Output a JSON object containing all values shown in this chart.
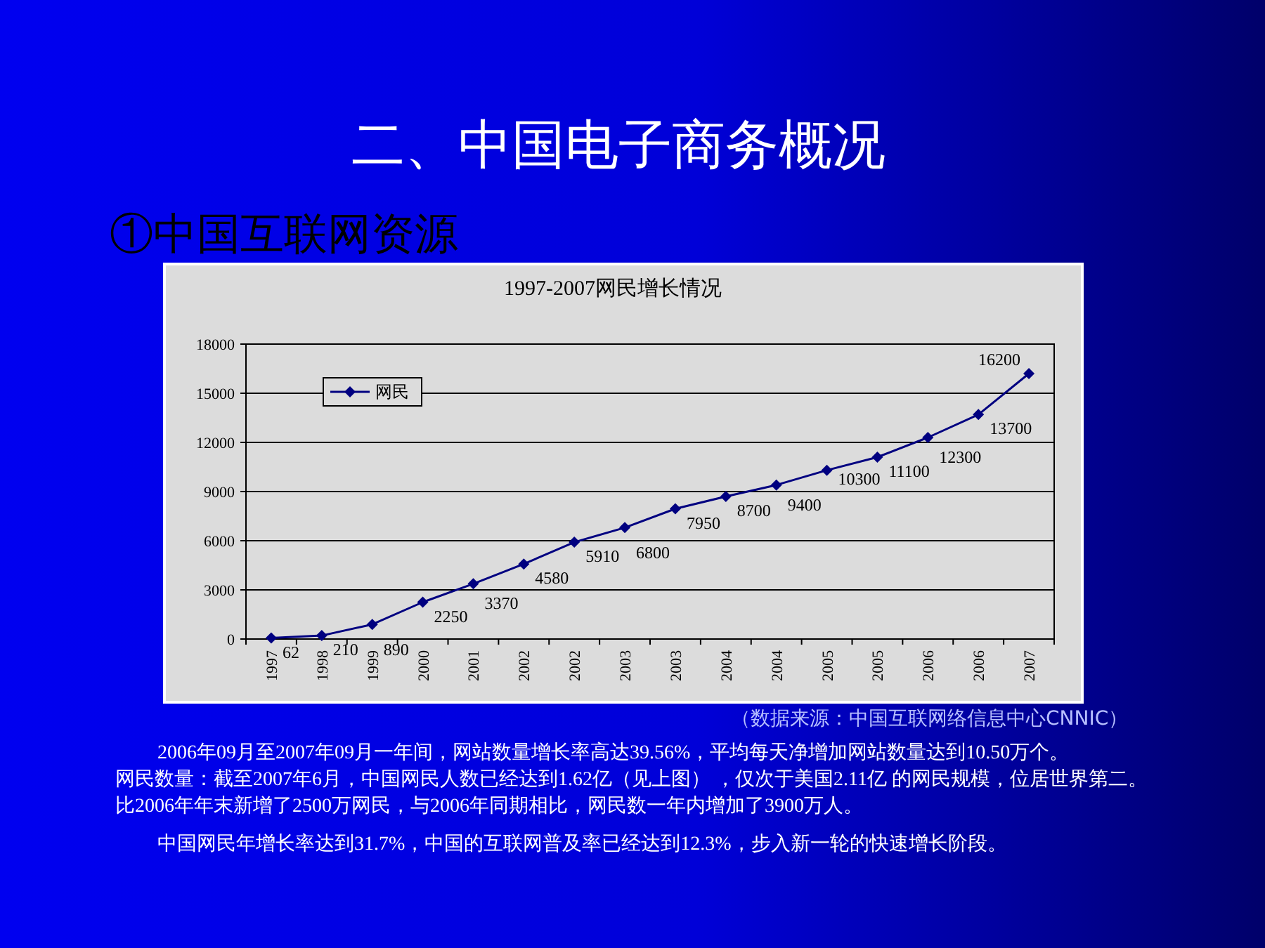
{
  "chart_data": {
    "type": "line",
    "title": "1997-2007网民增长情况",
    "categories": [
      "1997",
      "1998",
      "1999",
      "2000",
      "2001",
      "2002",
      "2002",
      "2003",
      "2003",
      "2004",
      "2004",
      "2005",
      "2005",
      "2006",
      "2006",
      "2007"
    ],
    "series": [
      {
        "name": "网民",
        "color": "#000080",
        "values": [
          62,
          210,
          890,
          2250,
          3370,
          4580,
          5910,
          6800,
          7950,
          8700,
          9400,
          10300,
          11100,
          12300,
          13700,
          16200
        ]
      }
    ],
    "ylim": [
      0,
      18000
    ],
    "yticks": [
      0,
      3000,
      6000,
      9000,
      12000,
      15000,
      18000
    ],
    "grid": "y",
    "legend": "top left",
    "marker": "diamond",
    "line_style": "solid",
    "data_labels": true,
    "annotations": [
      "二、中国电子商务概况",
      "①中国互联网资源",
      "（数据来源：中国互联网络信息中心CNNIC）",
      "2006年09月至2007年09月一年间，网站数量增长率高达39.56%，平均每天净增加网站数量达到10.50万个。",
      "网民数量：截至2007年6月，中国网民人数已经达到1.62亿（见上图） ，仅次于美国2.11亿 的网民规模，位居世界第二。比2006年年末新增了2500万网民，与2006年同期相比，网民数一年内增加了3900万人。",
      "中国网民年增长率达到31.7%，中国的互联网普及率已经达到12.3%，步入新一轮的快速增长阶段。"
    ]
  }
}
